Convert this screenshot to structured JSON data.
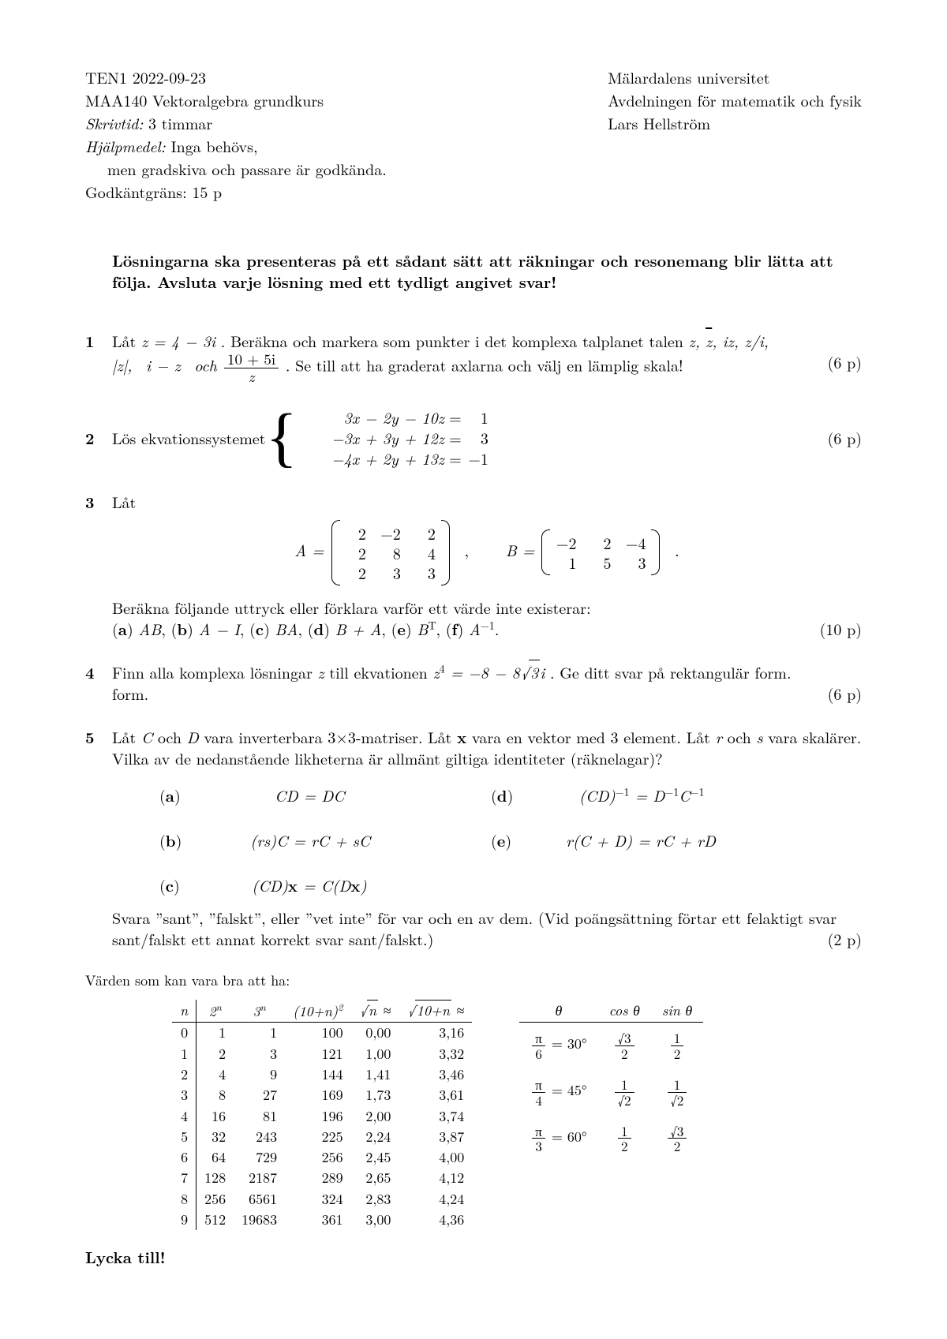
{
  "header": {
    "left": {
      "l1": "TEN1 2022-09-23",
      "l2": "MAA140 Vektoralgebra grundkurs",
      "l3_label": "Skrivtid:",
      "l3_val": " 3 timmar",
      "l4_label": "Hjälpmedel:",
      "l4_val": " Inga behövs,",
      "l5": "men gradskiva och passare är godkända.",
      "l6": "Godkäntgräns: 15 p"
    },
    "right": {
      "r1": "Mälardalens universitet",
      "r2": "Avdelningen för matematik och fysik",
      "r3": "Lars Hellström"
    }
  },
  "instructions": "Lösningarna ska presenteras på ett sådant sätt att räkningar och resonemang blir lätta att följa. Avsluta varje lösning med ett tydligt angivet svar!",
  "p1": {
    "num": "1",
    "text_a": "Låt ",
    "z_eq": "z = 4 − 3i",
    "text_b": ". Beräkna och markera som punkter i det komplexa talplanet talen ",
    "list": "z,  z̄,  iz,  z/i,",
    "list2_a": "|z|,  i − z  och ",
    "frac_num": "10 + 5i",
    "frac_den": "z",
    "text_c": ". Se till att ha graderat axlarna och välj en lämplig skala!",
    "points": "(6 p)"
  },
  "p2": {
    "num": "2",
    "text": "Lös ekvationssystemet ",
    "rows": [
      {
        "lhs": "3x − 2y − 10z",
        "rhs": "1"
      },
      {
        "lhs": "−3x + 3y + 12z",
        "rhs": "3"
      },
      {
        "lhs": "−4x + 2y + 13z",
        "rhs": "−1"
      }
    ],
    "points": "(6 p)"
  },
  "p3": {
    "num": "3",
    "text_a": "Låt",
    "A_label": "A = ",
    "A": [
      [
        "2",
        "−2",
        "2"
      ],
      [
        "2",
        "8",
        "4"
      ],
      [
        "2",
        "3",
        "3"
      ]
    ],
    "B_label": "B = ",
    "B": [
      [
        "−2",
        "2",
        "−4"
      ],
      [
        "1",
        "5",
        "3"
      ]
    ],
    "text_b": "Beräkna följande uttryck eller förklara varför ett värde inte existerar:",
    "parts": "(a) AB, (b) A − I, (c) BA, (d) B + A, (e) Bᵀ, (f) A⁻¹.",
    "points": "(10 p)"
  },
  "p4": {
    "num": "4",
    "text_a": "Finn alla komplexa lösningar ",
    "text_b": " till ekvationen ",
    "eq": "z⁴ = −8 − 8√3 i",
    "text_c": ". Ge ditt svar på rektangulär form.",
    "points": "(6 p)"
  },
  "p5": {
    "num": "5",
    "text_a": "Låt C och D vara inverterbara 3×3-matriser. Låt x vara en vektor med 3 element. Låt r och s vara skalärer. Vilka av de nedanstående likheterna är allmänt giltiga identiteter (räknelagar)?",
    "subs": {
      "a": "CD = DC",
      "b": "(rs)C = rC + sC",
      "c": "(CD)x = C(Dx)",
      "d": "(CD)⁻¹ = D⁻¹C⁻¹",
      "e": "r(C + D) = rC + rD"
    },
    "text_b": "Svara ”sant”, ”falskt”, eller ”vet inte” för var och en av dem. (Vid poängsättning förtar ett felaktigt svar sant/falskt ett annat korrekt svar sant/falskt.)",
    "points": "(2 p)"
  },
  "values_note": "Värden som kan vara bra att ha:",
  "valtable": {
    "headers": [
      "n",
      "2ⁿ",
      "3ⁿ",
      "(10+n)²",
      "√n ≈",
      "√(10+n) ≈"
    ],
    "rows": [
      [
        "0",
        "1",
        "1",
        "100",
        "0,00",
        "3,16"
      ],
      [
        "1",
        "2",
        "3",
        "121",
        "1,00",
        "3,32"
      ],
      [
        "2",
        "4",
        "9",
        "144",
        "1,41",
        "3,46"
      ],
      [
        "3",
        "8",
        "27",
        "169",
        "1,73",
        "3,61"
      ],
      [
        "4",
        "16",
        "81",
        "196",
        "2,00",
        "3,74"
      ],
      [
        "5",
        "32",
        "243",
        "225",
        "2,24",
        "3,87"
      ],
      [
        "6",
        "64",
        "729",
        "256",
        "2,45",
        "4,00"
      ],
      [
        "7",
        "128",
        "2187",
        "289",
        "2,65",
        "4,12"
      ],
      [
        "8",
        "256",
        "6561",
        "324",
        "2,83",
        "4,24"
      ],
      [
        "9",
        "512",
        "19683",
        "361",
        "3,00",
        "4,36"
      ]
    ]
  },
  "trigtable": {
    "headers": [
      "θ",
      "cos θ",
      "sin θ"
    ],
    "rows": [
      {
        "theta_frac": [
          "π",
          "6"
        ],
        "deg": " = 30°",
        "cos": [
          "√3",
          "2"
        ],
        "sin": [
          "1",
          "2"
        ]
      },
      {
        "theta_frac": [
          "π",
          "4"
        ],
        "deg": " = 45°",
        "cos": [
          "1",
          "√2"
        ],
        "sin": [
          "1",
          "√2"
        ]
      },
      {
        "theta_frac": [
          "π",
          "3"
        ],
        "deg": " = 60°",
        "cos": [
          "1",
          "2"
        ],
        "sin": [
          "√3",
          "2"
        ]
      }
    ]
  },
  "lycka": "Lycka till!"
}
